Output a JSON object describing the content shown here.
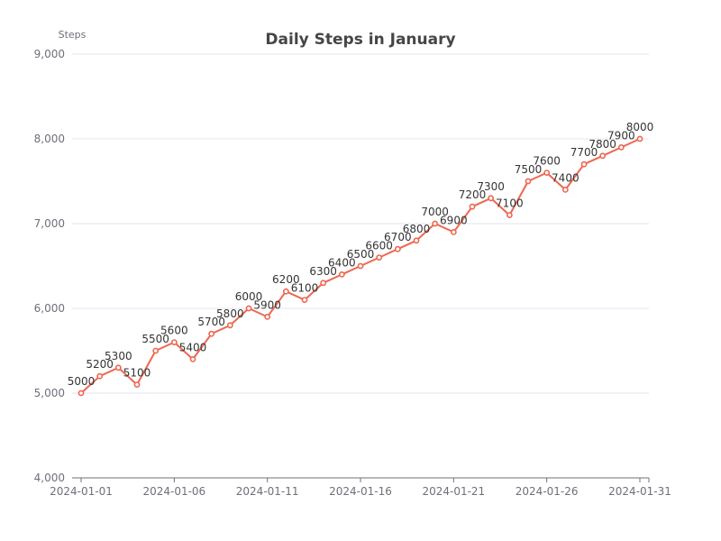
{
  "chart_data": {
    "type": "line",
    "title": "Daily Steps in January",
    "ylabel": "Steps",
    "xlabel": "",
    "ylim": [
      4000,
      9000
    ],
    "yticks": [
      4000,
      5000,
      6000,
      7000,
      8000,
      9000
    ],
    "yticks_labels": [
      "4,000",
      "5,000",
      "6,000",
      "7,000",
      "8,000",
      "9,000"
    ],
    "xtick_labels": [
      "2024-01-01",
      "2024-01-06",
      "2024-01-11",
      "2024-01-16",
      "2024-01-21",
      "2024-01-26",
      "2024-01-31"
    ],
    "x": [
      "2024-01-01",
      "2024-01-02",
      "2024-01-03",
      "2024-01-04",
      "2024-01-05",
      "2024-01-06",
      "2024-01-07",
      "2024-01-08",
      "2024-01-09",
      "2024-01-10",
      "2024-01-11",
      "2024-01-12",
      "2024-01-13",
      "2024-01-14",
      "2024-01-15",
      "2024-01-16",
      "2024-01-17",
      "2024-01-18",
      "2024-01-19",
      "2024-01-20",
      "2024-01-21",
      "2024-01-22",
      "2024-01-23",
      "2024-01-24",
      "2024-01-25",
      "2024-01-26",
      "2024-01-27",
      "2024-01-28",
      "2024-01-29",
      "2024-01-30",
      "2024-01-31"
    ],
    "series": [
      {
        "values": [
          5000,
          5200,
          5300,
          5100,
          5500,
          5600,
          5400,
          5700,
          5800,
          6000,
          5900,
          6200,
          6100,
          6300,
          6400,
          6500,
          6600,
          6700,
          6800,
          7000,
          6900,
          7200,
          7300,
          7100,
          7500,
          7600,
          7400,
          7700,
          7800,
          7900,
          8000
        ],
        "color": "#ee6650"
      }
    ],
    "grid": true,
    "data_labels": true
  }
}
